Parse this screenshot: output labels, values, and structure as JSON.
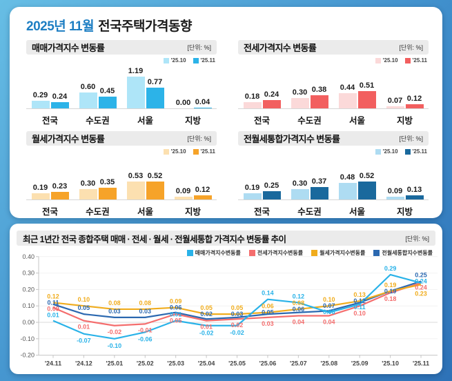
{
  "header": {
    "title_month": "2025년 11월",
    "title_subject": "전국주택가격동향",
    "accent_color": "#1d7ec3"
  },
  "unit_label": "[단위: %]",
  "chart_data": [
    {
      "type": "bar",
      "title": "매매가격지수 변동률",
      "unit": "[단위: %]",
      "categories": [
        "전국",
        "수도권",
        "서울",
        "지방"
      ],
      "series": [
        {
          "name": "'25.10",
          "color": "#aee5f8",
          "values": [
            0.29,
            0.6,
            1.19,
            0.0
          ]
        },
        {
          "name": "'25.11",
          "color": "#2cb3e8",
          "values": [
            0.24,
            0.45,
            0.77,
            0.04
          ]
        }
      ]
    },
    {
      "type": "bar",
      "title": "전세가격지수 변동률",
      "unit": "[단위: %]",
      "categories": [
        "전국",
        "수도권",
        "서울",
        "지방"
      ],
      "series": [
        {
          "name": "'25.10",
          "color": "#fbd9d9",
          "values": [
            0.18,
            0.3,
            0.44,
            0.07
          ]
        },
        {
          "name": "'25.11",
          "color": "#f25f5f",
          "values": [
            0.24,
            0.38,
            0.51,
            0.12
          ]
        }
      ]
    },
    {
      "type": "bar",
      "title": "월세가격지수 변동률",
      "unit": "[단위: %]",
      "categories": [
        "전국",
        "수도권",
        "서울",
        "지방"
      ],
      "series": [
        {
          "name": "'25.10",
          "color": "#fce0b0",
          "values": [
            0.19,
            0.3,
            0.53,
            0.09
          ]
        },
        {
          "name": "'25.11",
          "color": "#f6a329",
          "values": [
            0.23,
            0.35,
            0.52,
            0.12
          ]
        }
      ]
    },
    {
      "type": "bar",
      "title": "전월세통합가격지수 변동률",
      "unit": "[단위: %]",
      "categories": [
        "전국",
        "수도권",
        "서울",
        "지방"
      ],
      "series": [
        {
          "name": "'25.10",
          "color": "#aedcf2",
          "values": [
            0.19,
            0.3,
            0.48,
            0.09
          ]
        },
        {
          "name": "'25.11",
          "color": "#1a699d",
          "values": [
            0.25,
            0.37,
            0.52,
            0.13
          ]
        }
      ]
    },
    {
      "type": "line",
      "title": "최근 1년간 전국 종합주택 매매 · 전세 · 월세 · 전월세통합 가격지수 변동률 추이",
      "unit": "[단위: %]",
      "x": [
        "'24.11",
        "'24.12",
        "'25.01",
        "'25.02",
        "'25.03",
        "'25.04",
        "'25.05",
        "'25.06",
        "'25.07",
        "'25.08",
        "'25.09",
        "'25.10",
        "'25.11"
      ],
      "ylim": [
        -0.2,
        0.4
      ],
      "ytick_step": 0.1,
      "grid": true,
      "legend_position": "top-right",
      "series": [
        {
          "name": "매매가격지수변동률",
          "color": "#29b2e8",
          "values": [
            0.01,
            -0.07,
            -0.1,
            -0.06,
            0.01,
            -0.02,
            -0.02,
            0.14,
            0.12,
            0.06,
            0.11,
            0.29,
            0.24
          ]
        },
        {
          "name": "전세가격지수변동률",
          "color": "#f46d6d",
          "values": [
            0.09,
            0.01,
            -0.02,
            -0.01,
            0.05,
            0.01,
            0.02,
            0.03,
            0.04,
            0.04,
            0.1,
            0.18,
            0.24
          ]
        },
        {
          "name": "월세가격지수변동률",
          "color": "#f0ac1c",
          "values": [
            0.12,
            0.1,
            0.08,
            0.08,
            0.09,
            0.05,
            0.05,
            0.06,
            0.08,
            0.1,
            0.13,
            0.19,
            0.23
          ]
        },
        {
          "name": "전월세통합지수변동률",
          "color": "#2b68b0",
          "values": [
            0.11,
            0.05,
            0.03,
            0.03,
            0.06,
            0.02,
            0.03,
            0.05,
            0.06,
            0.07,
            0.12,
            0.19,
            0.25
          ]
        }
      ]
    }
  ]
}
